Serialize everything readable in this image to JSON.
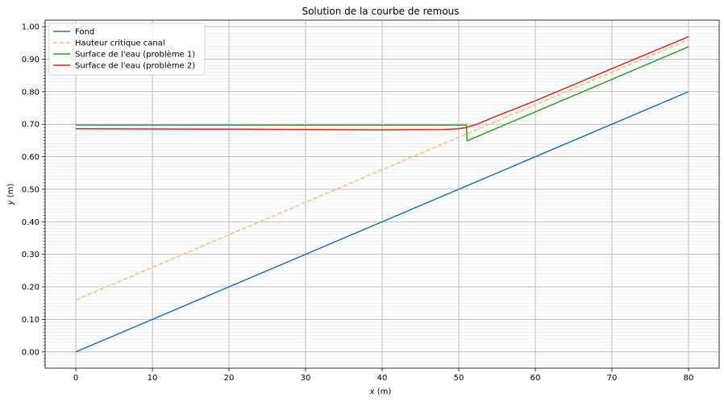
{
  "chart_data": {
    "type": "line",
    "title": "Solution de la courbe de remous",
    "xlabel_var": "x",
    "xlabel_unit": " (m)",
    "ylabel_var": "y",
    "ylabel_unit": " (m)",
    "xlim": [
      -4,
      84
    ],
    "ylim": [
      -0.05,
      1.02
    ],
    "xticks": [
      0,
      10,
      20,
      30,
      40,
      50,
      60,
      70,
      80
    ],
    "xtick_labels": [
      "0",
      "10",
      "20",
      "30",
      "40",
      "50",
      "60",
      "70",
      "80"
    ],
    "yticks": [
      0,
      0.1,
      0.2,
      0.3,
      0.4,
      0.5,
      0.6,
      0.7,
      0.8,
      0.9,
      1.0
    ],
    "ytick_labels": [
      "0.00",
      "0.10",
      "0.20",
      "0.30",
      "0.40",
      "0.50",
      "0.60",
      "0.70",
      "0.80",
      "0.90",
      "1.00"
    ],
    "grid": true,
    "minor_grid_y": true,
    "legend_position": "top-left",
    "series": [
      {
        "name": "Fond",
        "color": "#1f77b4",
        "dash": "solid",
        "x": [
          0,
          80
        ],
        "y": [
          0.0,
          0.8
        ]
      },
      {
        "name": "Hauteur critique canal",
        "color": "#ffbb78",
        "dash": "dashed",
        "x": [
          0,
          80
        ],
        "y": [
          0.16,
          0.96
        ]
      },
      {
        "name": "Surface de l'eau (problème 1)",
        "color": "#2ca02c",
        "dash": "solid",
        "x": [
          0,
          51,
          51.1,
          80
        ],
        "y": [
          0.697,
          0.697,
          0.649,
          0.938
        ]
      },
      {
        "name": "Surface de l'eau (problème 2)",
        "color": "#d62728",
        "dash": "solid",
        "x": [
          0,
          20,
          40,
          48,
          50,
          51,
          52,
          53,
          54,
          56,
          60,
          70,
          80
        ],
        "y": [
          0.686,
          0.685,
          0.683,
          0.684,
          0.686,
          0.69,
          0.697,
          0.706,
          0.716,
          0.735,
          0.772,
          0.871,
          0.969
        ]
      }
    ]
  }
}
